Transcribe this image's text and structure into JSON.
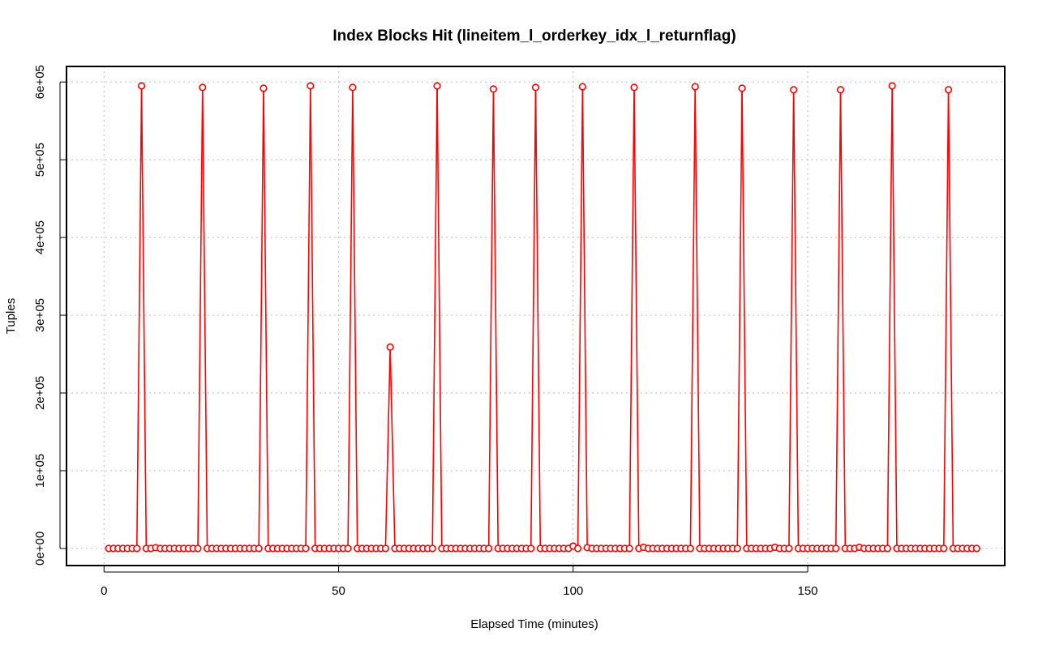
{
  "chart_data": {
    "type": "line",
    "title": "Index Blocks Hit (lineitem_l_orderkey_idx_l_returnflag)",
    "xlabel": "Elapsed Time (minutes)",
    "ylabel": "Tuples",
    "xlim": [
      -8,
      192
    ],
    "ylim": [
      -22000,
      620000
    ],
    "x_ticks": [
      0,
      50,
      100,
      150
    ],
    "x_tick_labels": [
      "0",
      "50",
      "100",
      "150"
    ],
    "y_ticks": [
      0,
      100000,
      200000,
      300000,
      400000,
      500000,
      600000
    ],
    "y_tick_labels": [
      "0e+00",
      "1e+05",
      "2e+05",
      "3e+05",
      "4e+05",
      "5e+05",
      "6e+05"
    ],
    "grid": true,
    "color": "#ff0000",
    "series": [
      {
        "x_start": 1,
        "x_step": 1,
        "values": [
          0,
          0,
          0,
          0,
          0,
          0,
          0,
          595000,
          0,
          0,
          1000,
          0,
          0,
          0,
          0,
          0,
          0,
          0,
          0,
          0,
          593000,
          0,
          0,
          0,
          0,
          0,
          0,
          0,
          0,
          0,
          0,
          0,
          0,
          592000,
          0,
          0,
          0,
          0,
          0,
          0,
          0,
          0,
          0,
          595000,
          0,
          0,
          0,
          0,
          0,
          0,
          0,
          0,
          593000,
          0,
          0,
          0,
          0,
          0,
          0,
          0,
          259000,
          0,
          0,
          0,
          0,
          0,
          0,
          0,
          0,
          0,
          595000,
          0,
          0,
          0,
          0,
          0,
          0,
          0,
          0,
          0,
          0,
          0,
          591000,
          0,
          0,
          0,
          0,
          0,
          0,
          0,
          0,
          593000,
          0,
          0,
          0,
          0,
          0,
          0,
          0,
          3000,
          0,
          594000,
          1000,
          0,
          0,
          0,
          0,
          0,
          0,
          0,
          0,
          0,
          593000,
          0,
          1500,
          0,
          0,
          0,
          0,
          0,
          0,
          0,
          0,
          0,
          0,
          594000,
          0,
          0,
          0,
          0,
          0,
          0,
          0,
          0,
          0,
          592000,
          0,
          0,
          0,
          0,
          0,
          0,
          1500,
          0,
          0,
          0,
          590000,
          0,
          0,
          0,
          0,
          0,
          0,
          0,
          0,
          0,
          590000,
          0,
          0,
          0,
          1500,
          0,
          0,
          0,
          0,
          0,
          0,
          595000,
          0,
          0,
          0,
          0,
          0,
          0,
          0,
          0,
          0,
          0,
          0,
          590000,
          0,
          0,
          0,
          0,
          0,
          0
        ]
      }
    ]
  }
}
